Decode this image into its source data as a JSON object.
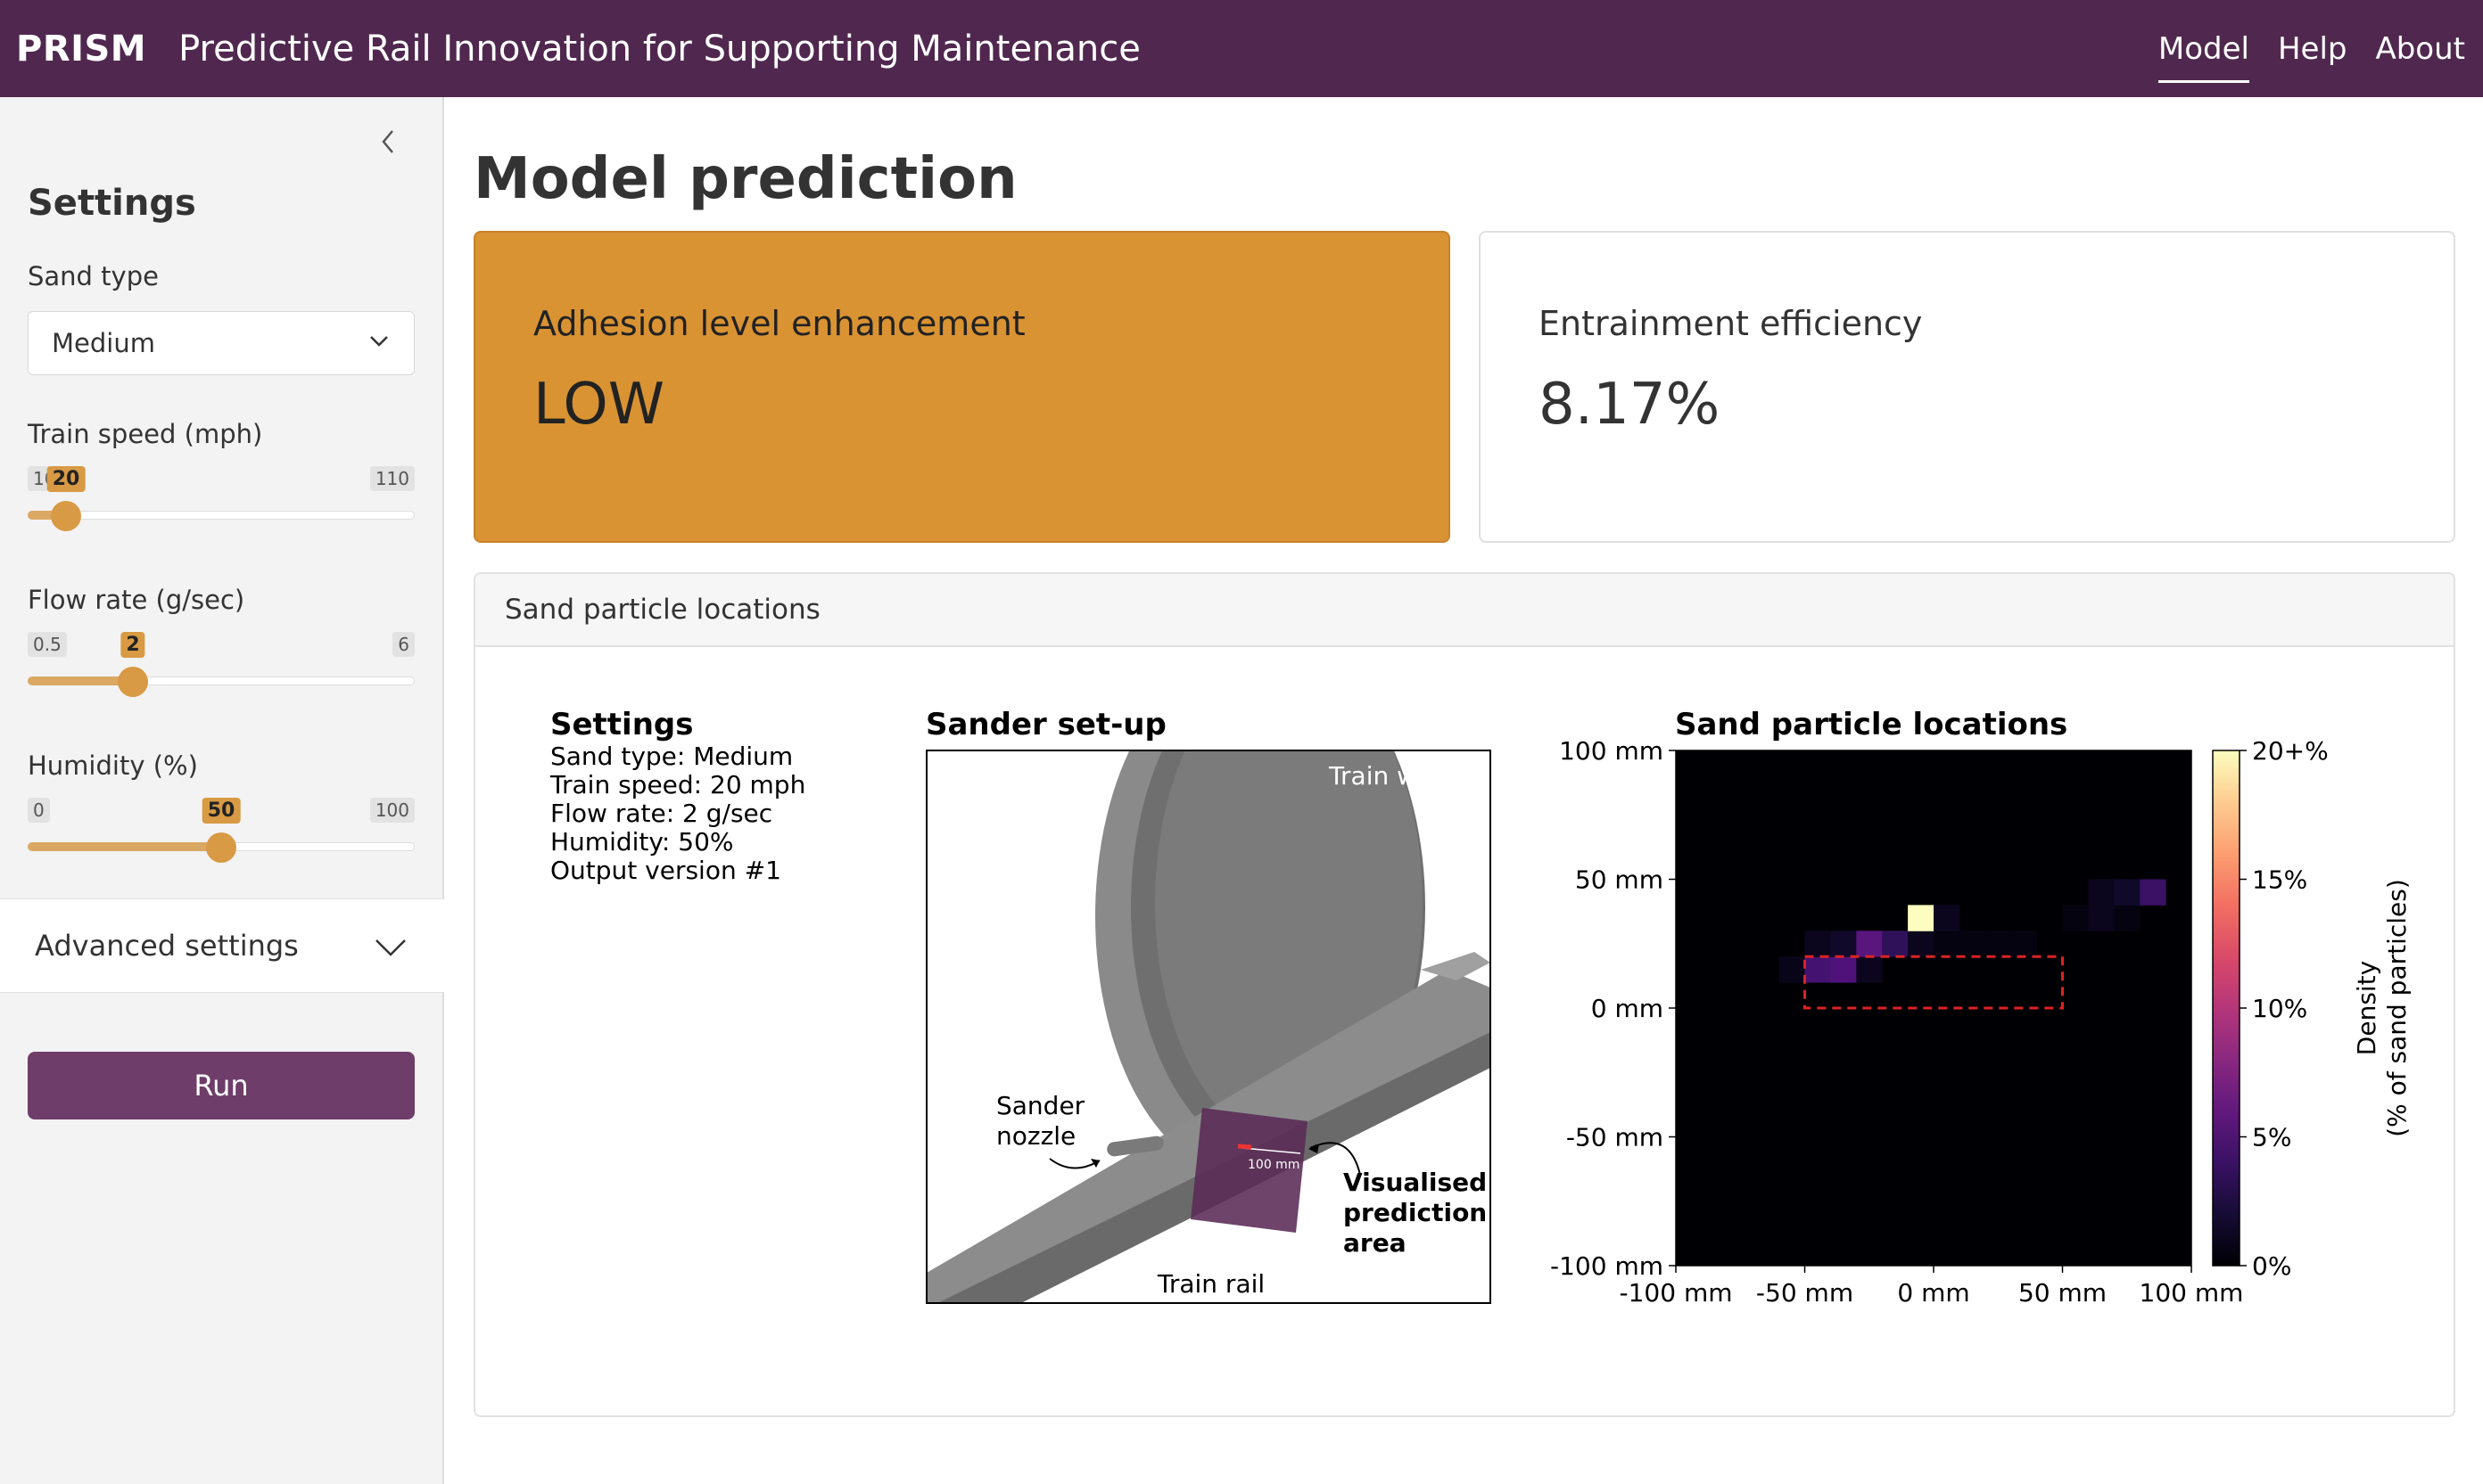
{
  "header": {
    "brand": "PRISM",
    "subtitle": "Predictive Rail Innovation for Supporting Maintenance",
    "nav": [
      {
        "label": "Model",
        "active": true
      },
      {
        "label": "Help",
        "active": false
      },
      {
        "label": "About",
        "active": false
      }
    ]
  },
  "sidebar": {
    "collapse_icon": "chevron-left-icon",
    "title": "Settings",
    "sand_type": {
      "label": "Sand type",
      "value": "Medium"
    },
    "train_speed": {
      "label": "Train speed (mph)",
      "min": "10",
      "max": "110",
      "value": "20",
      "fraction": 0.1
    },
    "flow_rate": {
      "label": "Flow rate (g/sec)",
      "min": "0.5",
      "max": "6",
      "value": "2",
      "fraction": 0.2727
    },
    "humidity": {
      "label": "Humidity (%)",
      "min": "0",
      "max": "100",
      "value": "50",
      "fraction": 0.5
    },
    "advanced": "Advanced settings",
    "run": "Run"
  },
  "main": {
    "title": "Model prediction",
    "adhesion": {
      "label": "Adhesion level enhancement",
      "value": "LOW",
      "color": "#d99333"
    },
    "entrainment": {
      "label": "Entrainment efficiency",
      "value": "8.17%"
    },
    "panel_title": "Sand particle locations"
  },
  "figure": {
    "settings_title": "Settings",
    "settings_lines": [
      "Sand type: Medium",
      "Train speed: 20 mph",
      "Flow rate: 2 g/sec",
      "Humidity: 50%",
      "Output version #1"
    ],
    "setup_title": "Sander set-up",
    "setup_labels": {
      "wheel": "Train wheel",
      "nozzle_1": "Sander",
      "nozzle_2": "nozzle",
      "area_1": "Visualised",
      "area_2": "prediction",
      "area_3": "area",
      "rail": "Train rail",
      "scale": "100 mm"
    }
  },
  "chart_data": {
    "type": "heatmap",
    "title": "Sand particle locations",
    "x_ticks": [
      "-100 mm",
      "-50 mm",
      "0 mm",
      "50 mm",
      "100 mm"
    ],
    "y_ticks": [
      "100 mm",
      "50 mm",
      "0 mm",
      "-50 mm",
      "-100 mm"
    ],
    "xlim": [
      -100,
      100
    ],
    "ylim": [
      -100,
      100
    ],
    "cell_size_mm": 10,
    "colorbar": {
      "ticks": [
        "20+%",
        "15%",
        "10%",
        "5%",
        "0%"
      ],
      "range": [
        0,
        20
      ],
      "label_1": "Density",
      "label_2": "(% of sand particles)"
    },
    "highlight_box_mm": {
      "x": [
        -50,
        50
      ],
      "y": [
        0,
        20
      ]
    },
    "cells": [
      {
        "x": -55,
        "y": 15,
        "v": 0.8
      },
      {
        "x": -45,
        "y": 15,
        "v": 4.5
      },
      {
        "x": -35,
        "y": 15,
        "v": 5.0
      },
      {
        "x": -25,
        "y": 15,
        "v": 1.0
      },
      {
        "x": -45,
        "y": 25,
        "v": 1.0
      },
      {
        "x": -35,
        "y": 25,
        "v": 1.5
      },
      {
        "x": -25,
        "y": 25,
        "v": 5.5
      },
      {
        "x": -15,
        "y": 25,
        "v": 3.5
      },
      {
        "x": -5,
        "y": 25,
        "v": 1.0
      },
      {
        "x": 5,
        "y": 25,
        "v": 0.5
      },
      {
        "x": 15,
        "y": 25,
        "v": 0.5
      },
      {
        "x": 25,
        "y": 25,
        "v": 0.5
      },
      {
        "x": 35,
        "y": 25,
        "v": 0.5
      },
      {
        "x": -5,
        "y": 35,
        "v": 20
      },
      {
        "x": 5,
        "y": 35,
        "v": 1.0
      },
      {
        "x": 55,
        "y": 35,
        "v": 0.5
      },
      {
        "x": 65,
        "y": 35,
        "v": 1.0
      },
      {
        "x": 75,
        "y": 35,
        "v": 0.5
      },
      {
        "x": 65,
        "y": 45,
        "v": 1.0
      },
      {
        "x": 75,
        "y": 45,
        "v": 1.5
      },
      {
        "x": 85,
        "y": 45,
        "v": 4.0
      }
    ]
  }
}
